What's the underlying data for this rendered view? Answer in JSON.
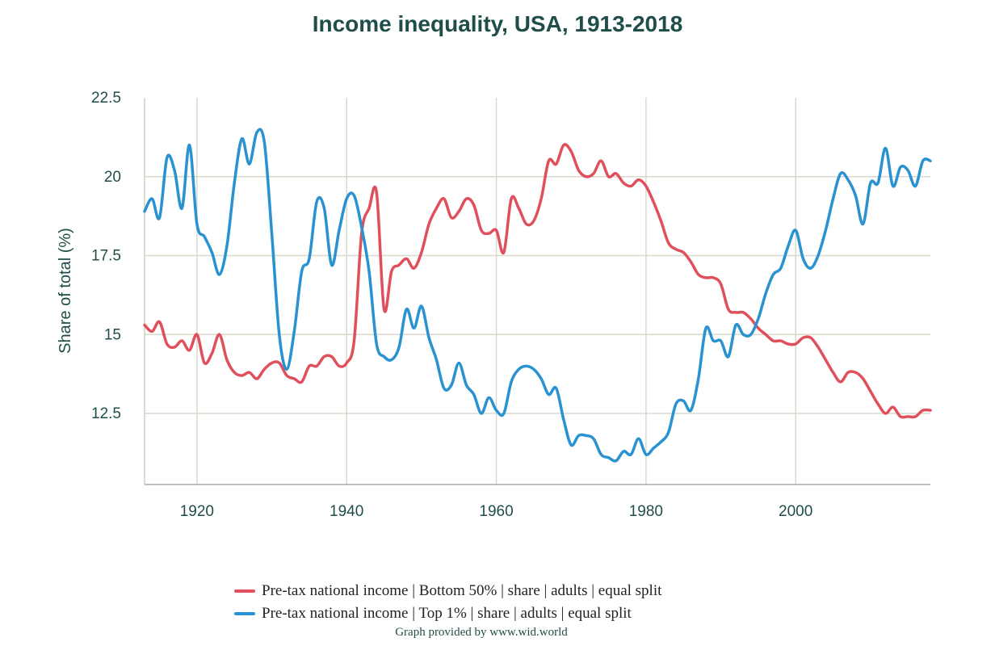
{
  "chart_data": {
    "type": "line",
    "title": "Income inequality, USA, 1913-2018",
    "xlabel": "",
    "ylabel": "Share of total (%)",
    "xlim": [
      1913,
      2018
    ],
    "ylim": [
      10.25,
      22.5
    ],
    "xticks": [
      1920,
      1940,
      1960,
      1980,
      2000
    ],
    "yticks": [
      12.5,
      15,
      17.5,
      20,
      22.5
    ],
    "grid": true,
    "legend_position": "bottom",
    "series": [
      {
        "name": "Pre-tax national income | Bottom 50% | share | adults | equal split",
        "color": "#e0505c",
        "points": [
          [
            1913,
            15.3
          ],
          [
            1914,
            15.1
          ],
          [
            1915,
            15.4
          ],
          [
            1916,
            14.7
          ],
          [
            1917,
            14.6
          ],
          [
            1918,
            14.8
          ],
          [
            1919,
            14.5
          ],
          [
            1920,
            15.0
          ],
          [
            1921,
            14.1
          ],
          [
            1922,
            14.4
          ],
          [
            1923,
            15.0
          ],
          [
            1924,
            14.2
          ],
          [
            1925,
            13.8
          ],
          [
            1926,
            13.7
          ],
          [
            1927,
            13.8
          ],
          [
            1928,
            13.6
          ],
          [
            1929,
            13.9
          ],
          [
            1930,
            14.1
          ],
          [
            1931,
            14.1
          ],
          [
            1932,
            13.7
          ],
          [
            1933,
            13.6
          ],
          [
            1934,
            13.5
          ],
          [
            1935,
            14.0
          ],
          [
            1936,
            14.0
          ],
          [
            1937,
            14.3
          ],
          [
            1938,
            14.3
          ],
          [
            1939,
            14.0
          ],
          [
            1940,
            14.1
          ],
          [
            1941,
            14.8
          ],
          [
            1942,
            18.2
          ],
          [
            1943,
            19.0
          ],
          [
            1944,
            19.5
          ],
          [
            1945,
            15.8
          ],
          [
            1946,
            17.0
          ],
          [
            1947,
            17.2
          ],
          [
            1948,
            17.4
          ],
          [
            1949,
            17.1
          ],
          [
            1950,
            17.6
          ],
          [
            1951,
            18.5
          ],
          [
            1952,
            19.0
          ],
          [
            1953,
            19.3
          ],
          [
            1954,
            18.7
          ],
          [
            1955,
            18.9
          ],
          [
            1956,
            19.3
          ],
          [
            1957,
            19.1
          ],
          [
            1958,
            18.3
          ],
          [
            1959,
            18.2
          ],
          [
            1960,
            18.3
          ],
          [
            1961,
            17.6
          ],
          [
            1962,
            19.3
          ],
          [
            1963,
            19.0
          ],
          [
            1964,
            18.5
          ],
          [
            1965,
            18.6
          ],
          [
            1966,
            19.3
          ],
          [
            1967,
            20.5
          ],
          [
            1968,
            20.4
          ],
          [
            1969,
            21.0
          ],
          [
            1970,
            20.8
          ],
          [
            1971,
            20.2
          ],
          [
            1972,
            20.0
          ],
          [
            1973,
            20.1
          ],
          [
            1974,
            20.5
          ],
          [
            1975,
            20.0
          ],
          [
            1976,
            20.1
          ],
          [
            1977,
            19.8
          ],
          [
            1978,
            19.7
          ],
          [
            1979,
            19.9
          ],
          [
            1980,
            19.7
          ],
          [
            1981,
            19.2
          ],
          [
            1982,
            18.6
          ],
          [
            1983,
            17.9
          ],
          [
            1984,
            17.7
          ],
          [
            1985,
            17.6
          ],
          [
            1986,
            17.3
          ],
          [
            1987,
            16.9
          ],
          [
            1988,
            16.8
          ],
          [
            1989,
            16.8
          ],
          [
            1990,
            16.6
          ],
          [
            1991,
            15.8
          ],
          [
            1992,
            15.7
          ],
          [
            1993,
            15.7
          ],
          [
            1994,
            15.5
          ],
          [
            1995,
            15.2
          ],
          [
            1996,
            15.0
          ],
          [
            1997,
            14.8
          ],
          [
            1998,
            14.8
          ],
          [
            1999,
            14.7
          ],
          [
            2000,
            14.7
          ],
          [
            2001,
            14.9
          ],
          [
            2002,
            14.9
          ],
          [
            2003,
            14.6
          ],
          [
            2004,
            14.2
          ],
          [
            2005,
            13.8
          ],
          [
            2006,
            13.5
          ],
          [
            2007,
            13.8
          ],
          [
            2008,
            13.8
          ],
          [
            2009,
            13.6
          ],
          [
            2010,
            13.2
          ],
          [
            2011,
            12.8
          ],
          [
            2012,
            12.5
          ],
          [
            2013,
            12.7
          ],
          [
            2014,
            12.4
          ],
          [
            2015,
            12.4
          ],
          [
            2016,
            12.4
          ],
          [
            2017,
            12.6
          ],
          [
            2018,
            12.6
          ]
        ]
      },
      {
        "name": "Pre-tax national income | Top 1% | share | adults | equal split",
        "color": "#2a92d0",
        "points": [
          [
            1913,
            18.9
          ],
          [
            1914,
            19.3
          ],
          [
            1915,
            18.7
          ],
          [
            1916,
            20.6
          ],
          [
            1917,
            20.2
          ],
          [
            1918,
            19.0
          ],
          [
            1919,
            21.0
          ],
          [
            1920,
            18.5
          ],
          [
            1921,
            18.1
          ],
          [
            1922,
            17.6
          ],
          [
            1923,
            16.9
          ],
          [
            1924,
            17.8
          ],
          [
            1925,
            19.8
          ],
          [
            1926,
            21.2
          ],
          [
            1927,
            20.4
          ],
          [
            1928,
            21.4
          ],
          [
            1929,
            21.1
          ],
          [
            1930,
            18.2
          ],
          [
            1931,
            15.0
          ],
          [
            1932,
            13.9
          ],
          [
            1933,
            15.1
          ],
          [
            1934,
            17.0
          ],
          [
            1935,
            17.4
          ],
          [
            1936,
            19.2
          ],
          [
            1937,
            19.0
          ],
          [
            1938,
            17.2
          ],
          [
            1939,
            18.3
          ],
          [
            1940,
            19.3
          ],
          [
            1941,
            19.4
          ],
          [
            1942,
            18.4
          ],
          [
            1943,
            17.0
          ],
          [
            1944,
            14.7
          ],
          [
            1945,
            14.3
          ],
          [
            1946,
            14.2
          ],
          [
            1947,
            14.6
          ],
          [
            1948,
            15.8
          ],
          [
            1949,
            15.2
          ],
          [
            1950,
            15.9
          ],
          [
            1951,
            14.9
          ],
          [
            1952,
            14.2
          ],
          [
            1953,
            13.3
          ],
          [
            1954,
            13.4
          ],
          [
            1955,
            14.1
          ],
          [
            1956,
            13.4
          ],
          [
            1957,
            13.1
          ],
          [
            1958,
            12.5
          ],
          [
            1959,
            13.0
          ],
          [
            1960,
            12.6
          ],
          [
            1961,
            12.5
          ],
          [
            1962,
            13.5
          ],
          [
            1963,
            13.9
          ],
          [
            1964,
            14.0
          ],
          [
            1965,
            13.9
          ],
          [
            1966,
            13.6
          ],
          [
            1967,
            13.1
          ],
          [
            1968,
            13.3
          ],
          [
            1969,
            12.3
          ],
          [
            1970,
            11.5
          ],
          [
            1971,
            11.8
          ],
          [
            1972,
            11.8
          ],
          [
            1973,
            11.7
          ],
          [
            1974,
            11.2
          ],
          [
            1975,
            11.1
          ],
          [
            1976,
            11.0
          ],
          [
            1977,
            11.3
          ],
          [
            1978,
            11.2
          ],
          [
            1979,
            11.7
          ],
          [
            1980,
            11.2
          ],
          [
            1981,
            11.4
          ],
          [
            1982,
            11.6
          ],
          [
            1983,
            11.9
          ],
          [
            1984,
            12.8
          ],
          [
            1985,
            12.9
          ],
          [
            1986,
            12.6
          ],
          [
            1987,
            13.6
          ],
          [
            1988,
            15.2
          ],
          [
            1989,
            14.8
          ],
          [
            1990,
            14.8
          ],
          [
            1991,
            14.3
          ],
          [
            1992,
            15.3
          ],
          [
            1993,
            15.0
          ],
          [
            1994,
            15.0
          ],
          [
            1995,
            15.5
          ],
          [
            1996,
            16.3
          ],
          [
            1997,
            16.9
          ],
          [
            1998,
            17.1
          ],
          [
            1999,
            17.8
          ],
          [
            2000,
            18.3
          ],
          [
            2001,
            17.4
          ],
          [
            2002,
            17.1
          ],
          [
            2003,
            17.5
          ],
          [
            2004,
            18.3
          ],
          [
            2005,
            19.3
          ],
          [
            2006,
            20.1
          ],
          [
            2007,
            19.9
          ],
          [
            2008,
            19.4
          ],
          [
            2009,
            18.5
          ],
          [
            2010,
            19.8
          ],
          [
            2011,
            19.8
          ],
          [
            2012,
            20.9
          ],
          [
            2013,
            19.7
          ],
          [
            2014,
            20.3
          ],
          [
            2015,
            20.2
          ],
          [
            2016,
            19.7
          ],
          [
            2017,
            20.5
          ],
          [
            2018,
            20.5
          ]
        ]
      }
    ]
  },
  "credit": "Graph provided by www.wid.world"
}
